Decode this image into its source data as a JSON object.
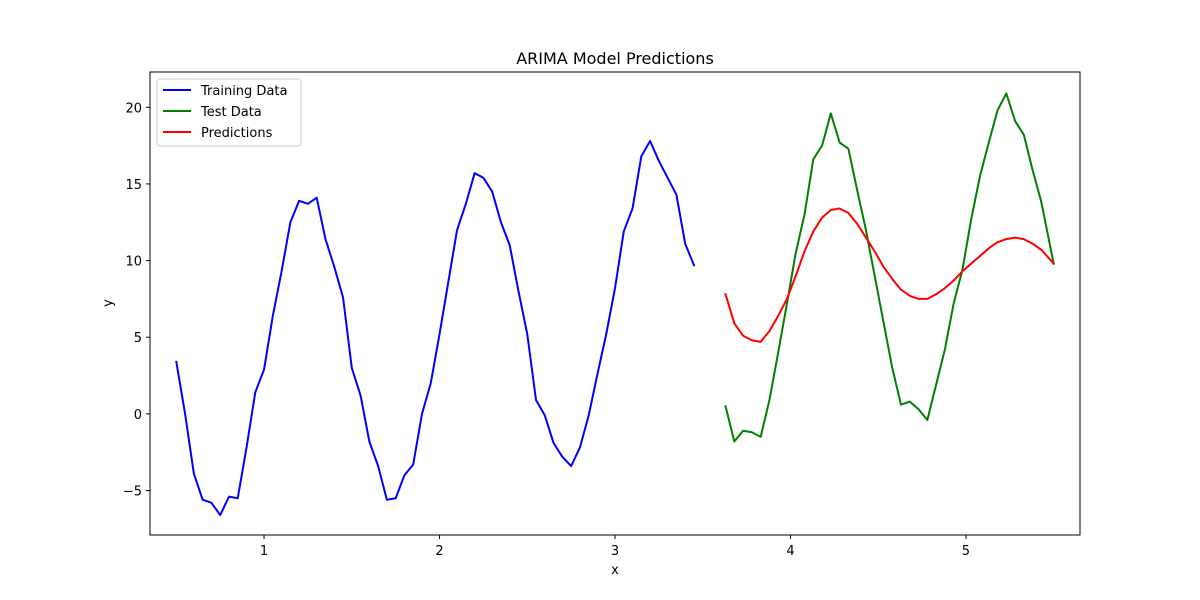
{
  "chart_data": {
    "type": "line",
    "title": "ARIMA Model Predictions",
    "xlabel": "x",
    "ylabel": "y",
    "xlim": [
      0.35,
      5.65
    ],
    "ylim": [
      -7.9,
      22.3
    ],
    "xticks": [
      1,
      2,
      3,
      4,
      5
    ],
    "yticks": [
      -5,
      0,
      5,
      10,
      15,
      20
    ],
    "legend_position": "top-left",
    "grid": false,
    "series": [
      {
        "name": "Training Data",
        "color": "#0000ff",
        "x": [
          0.5,
          0.55,
          0.6,
          0.65,
          0.7,
          0.75,
          0.8,
          0.85,
          0.9,
          0.95,
          1.0,
          1.05,
          1.1,
          1.15,
          1.2,
          1.25,
          1.3,
          1.35,
          1.4,
          1.45,
          1.5,
          1.55,
          1.6,
          1.65,
          1.7,
          1.75,
          1.8,
          1.85,
          1.9,
          1.95,
          2.0,
          2.05,
          2.1,
          2.15,
          2.2,
          2.25,
          2.3,
          2.35,
          2.4,
          2.45,
          2.5,
          2.55,
          2.6,
          2.65,
          2.7,
          2.75,
          2.8,
          2.85,
          2.9,
          2.95,
          3.0,
          3.05,
          3.1,
          3.15,
          3.2,
          3.25,
          3.3,
          3.35,
          3.4,
          3.45
        ],
        "y": [
          3.4,
          0.0,
          -3.9,
          -5.6,
          -5.8,
          -6.6,
          -5.4,
          -5.5,
          -2.2,
          1.4,
          2.9,
          6.4,
          9.3,
          12.5,
          13.9,
          13.7,
          14.1,
          11.4,
          9.6,
          7.6,
          3.0,
          1.2,
          -1.8,
          -3.4,
          -5.6,
          -5.5,
          -4.0,
          -3.3,
          0.0,
          2.0,
          5.2,
          8.6,
          12.0,
          13.7,
          15.7,
          15.4,
          14.5,
          12.5,
          11.0,
          8.0,
          5.2,
          0.9,
          -0.1,
          -1.9,
          -2.8,
          -3.4,
          -2.2,
          -0.1,
          2.6,
          5.2,
          8.2,
          11.9,
          13.4,
          16.8,
          17.8,
          16.5,
          15.4,
          14.3,
          11.1,
          9.7
        ]
      },
      {
        "name": "Test Data",
        "color": "#008000",
        "x": [
          3.63,
          3.68,
          3.73,
          3.78,
          3.83,
          3.88,
          3.93,
          3.98,
          4.03,
          4.08,
          4.13,
          4.18,
          4.23,
          4.28,
          4.33,
          4.38,
          4.43,
          4.48,
          4.53,
          4.58,
          4.63,
          4.68,
          4.73,
          4.78,
          4.83,
          4.88,
          4.93,
          4.98,
          5.03,
          5.08,
          5.13,
          5.18,
          5.23,
          5.28,
          5.33,
          5.38,
          5.43,
          5.5
        ],
        "y": [
          0.5,
          -1.8,
          -1.1,
          -1.2,
          -1.5,
          0.9,
          4.0,
          7.2,
          10.5,
          13.0,
          16.6,
          17.5,
          19.6,
          17.7,
          17.3,
          14.6,
          12.0,
          9.0,
          6.0,
          3.0,
          0.6,
          0.8,
          0.3,
          -0.4,
          1.9,
          4.2,
          7.2,
          9.4,
          12.7,
          15.5,
          17.7,
          19.8,
          20.9,
          19.1,
          18.2,
          15.9,
          13.8,
          9.8
        ]
      },
      {
        "name": "Predictions",
        "color": "#ff0000",
        "x": [
          3.63,
          3.68,
          3.73,
          3.78,
          3.83,
          3.88,
          3.93,
          3.98,
          4.03,
          4.08,
          4.13,
          4.18,
          4.23,
          4.28,
          4.33,
          4.38,
          4.43,
          4.48,
          4.53,
          4.58,
          4.63,
          4.68,
          4.73,
          4.78,
          4.83,
          4.88,
          4.93,
          4.98,
          5.03,
          5.08,
          5.13,
          5.18,
          5.23,
          5.28,
          5.33,
          5.38,
          5.43,
          5.5
        ],
        "y": [
          7.8,
          5.9,
          5.1,
          4.8,
          4.7,
          5.4,
          6.4,
          7.5,
          9.0,
          10.6,
          11.9,
          12.8,
          13.3,
          13.4,
          13.1,
          12.4,
          11.5,
          10.6,
          9.6,
          8.8,
          8.1,
          7.7,
          7.5,
          7.5,
          7.8,
          8.2,
          8.7,
          9.3,
          9.8,
          10.3,
          10.8,
          11.2,
          11.4,
          11.5,
          11.4,
          11.1,
          10.7,
          9.8
        ]
      }
    ]
  }
}
